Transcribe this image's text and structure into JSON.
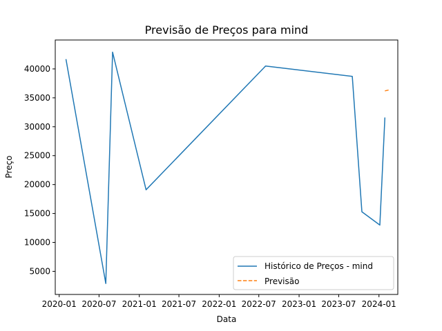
{
  "chart_data": {
    "type": "line",
    "title": "Previsão de Preços para mind",
    "xlabel": "Data",
    "ylabel": "Preço",
    "x_axis_type": "date",
    "xlim": [
      "2019-12-14",
      "2024-03-27"
    ],
    "ylim": [
      1000,
      45000
    ],
    "x_ticks": [
      "2020-01-01",
      "2020-07-01",
      "2021-01-01",
      "2021-07-01",
      "2022-01-01",
      "2022-07-01",
      "2023-01-01",
      "2023-07-01",
      "2024-01-01"
    ],
    "x_tick_labels": [
      "2020-01",
      "2020-07",
      "2021-01",
      "2021-07",
      "2022-01",
      "2022-07",
      "2023-01",
      "2023-07",
      "2024-01"
    ],
    "y_ticks": [
      5000,
      10000,
      15000,
      20000,
      25000,
      30000,
      35000,
      40000
    ],
    "y_tick_labels": [
      "5000",
      "10000",
      "15000",
      "20000",
      "25000",
      "30000",
      "35000",
      "40000"
    ],
    "grid": false,
    "legend_position": "lower-right",
    "series": [
      {
        "name": "Histórico de Preços - mind",
        "color": "#1f77b4",
        "style": "solid",
        "x": [
          "2020-02-01",
          "2020-08-01",
          "2020-09-01",
          "2021-02-01",
          "2022-08-01",
          "2023-09-01",
          "2023-10-15",
          "2024-01-05",
          "2024-01-28"
        ],
        "y": [
          41700,
          2900,
          42900,
          19100,
          40500,
          38700,
          15300,
          13000,
          31600
        ]
      },
      {
        "name": "Previsão",
        "color": "#ff7f0e",
        "style": "dashed",
        "x": [
          "2024-01-28",
          "2024-02-20"
        ],
        "y": [
          36200,
          36400
        ]
      }
    ]
  }
}
